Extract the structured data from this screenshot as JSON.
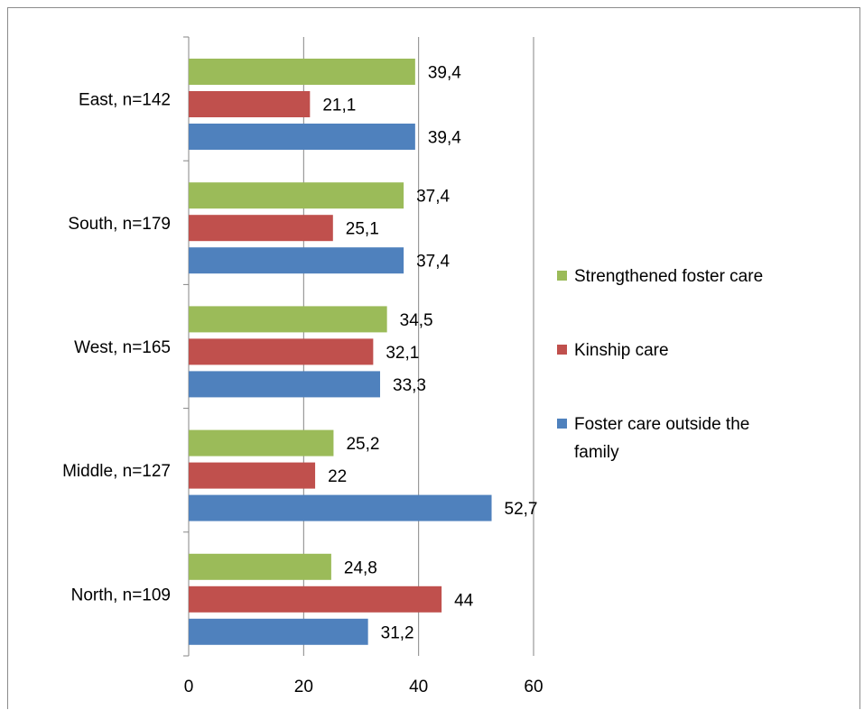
{
  "chart_data": {
    "type": "bar",
    "orientation": "horizontal",
    "categories": [
      "East, n=142",
      "South, n=179",
      "West, n=165",
      "Middle, n=127",
      "North, n=109"
    ],
    "series": [
      {
        "name": "Strengthened foster care",
        "color": "#9BBB59",
        "values": [
          39.4,
          37.4,
          34.5,
          25.2,
          24.8
        ],
        "labels": [
          "39,4",
          "37,4",
          "34,5",
          "25,2",
          "24,8"
        ]
      },
      {
        "name": "Kinship care",
        "color": "#C0504D",
        "values": [
          21.1,
          25.1,
          32.1,
          22,
          44
        ],
        "labels": [
          "21,1",
          "25,1",
          "32,1",
          "22",
          "44"
        ]
      },
      {
        "name": "Foster care outside the family",
        "color": "#4F81BD",
        "values": [
          39.4,
          37.4,
          33.3,
          52.7,
          31.2
        ],
        "labels": [
          "39,4",
          "37,4",
          "33,3",
          "52,7",
          "31,2"
        ]
      }
    ],
    "xlim": [
      0,
      60
    ],
    "xticks": [
      0,
      20,
      40,
      60
    ],
    "xtick_labels": [
      "0",
      "20",
      "40",
      "60"
    ],
    "grid": true,
    "legend_position": "right",
    "title": "",
    "xlabel": "",
    "ylabel": ""
  },
  "legend": {
    "items": [
      {
        "lines": [
          "Strengthened foster care"
        ],
        "color": "#9BBB59"
      },
      {
        "lines": [
          "Kinship care"
        ],
        "color": "#C0504D"
      },
      {
        "lines": [
          "Foster care outside the",
          "family"
        ],
        "color": "#4F81BD"
      }
    ]
  }
}
